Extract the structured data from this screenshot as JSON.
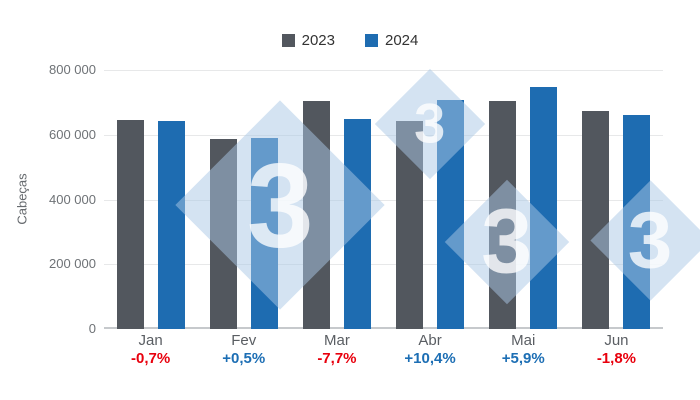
{
  "chart_data": {
    "type": "bar",
    "title": "",
    "ylabel": "Cabeças",
    "categories": [
      "Jan",
      "Fev",
      "Mar",
      "Abr",
      "Mai",
      "Jun"
    ],
    "series": [
      {
        "name": "2023",
        "color": "#52575e",
        "values": [
          647000,
          587000,
          703000,
          642000,
          705000,
          674000
        ]
      },
      {
        "name": "2024",
        "color": "#1e6cb1",
        "values": [
          642500,
          590000,
          649000,
          708800,
          746600,
          662000
        ]
      }
    ],
    "variations": [
      {
        "label": "-0,7%",
        "sign": "negative"
      },
      {
        "label": "+0,5%",
        "sign": "positive"
      },
      {
        "label": "-7,7%",
        "sign": "negative"
      },
      {
        "label": "+10,4%",
        "sign": "positive"
      },
      {
        "label": "+5,9%",
        "sign": "positive"
      },
      {
        "label": "-1,8%",
        "sign": "negative"
      }
    ],
    "yticks": [
      {
        "label": "800 000",
        "value": 800000
      },
      {
        "label": "600 000",
        "value": 600000
      },
      {
        "label": "400 000",
        "value": 400000
      },
      {
        "label": "200 000",
        "value": 200000
      },
      {
        "label": "0",
        "value": 0
      }
    ],
    "ylim": [
      0,
      800000
    ],
    "grid": "horizontal",
    "legend_position": "top-center"
  },
  "legend": {
    "items": [
      {
        "label": "2023",
        "color": "#52575e"
      },
      {
        "label": "2024",
        "color": "#1e6cb1"
      }
    ]
  },
  "palette": {
    "negative": "#e8000d",
    "positive": "#1c6eb4",
    "gridline": "#e7e8e9",
    "baseline": "#c6c9cc",
    "tick_text": "#6e7276",
    "month_text": "#5a5e63"
  },
  "watermark": {
    "glyph": "3",
    "diamond_color": "#aac8e5",
    "glyph_color": "#ffffff"
  }
}
